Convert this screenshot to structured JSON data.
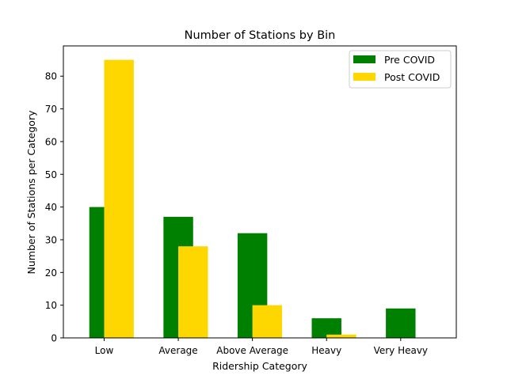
{
  "chart_data": {
    "type": "bar",
    "title": "Number of Stations by Bin",
    "xlabel": "Ridership Category",
    "ylabel": "Number of Stations per Category",
    "categories": [
      "Low",
      "Average",
      "Above Average",
      "Heavy",
      "Very Heavy"
    ],
    "series": [
      {
        "name": "Pre COVID",
        "color": "#008000",
        "values": [
          40,
          37,
          32,
          6,
          9
        ]
      },
      {
        "name": "Post COVID",
        "color": "#ffd700",
        "values": [
          85,
          28,
          10,
          1,
          0
        ]
      }
    ],
    "ylim": [
      0,
      89.25
    ],
    "yticks": [
      0,
      10,
      20,
      30,
      40,
      50,
      60,
      70,
      80
    ],
    "grid": false,
    "legend_position": "top-right"
  }
}
